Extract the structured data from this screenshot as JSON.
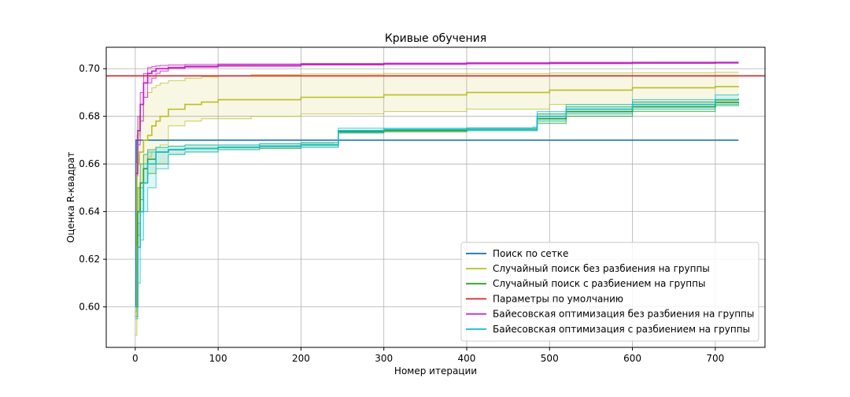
{
  "chart_data": {
    "type": "line",
    "title": "Кривые обучения",
    "xlabel": "Номер итерации",
    "ylabel": "Оценка R-квадрат",
    "xlim": [
      -35,
      760
    ],
    "ylim": [
      0.583,
      0.709
    ],
    "xticks": [
      0,
      100,
      200,
      300,
      400,
      500,
      600,
      700
    ],
    "yticks": [
      0.6,
      0.62,
      0.64,
      0.66,
      0.68,
      0.7
    ],
    "xtick_labels": [
      "0",
      "100",
      "200",
      "300",
      "400",
      "500",
      "600",
      "700"
    ],
    "ytick_labels": [
      "0.60",
      "0.62",
      "0.64",
      "0.66",
      "0.68",
      "0.70"
    ],
    "grid": true,
    "legend_position": "lower right",
    "series": [
      {
        "name": "Поиск по сетке",
        "color": "#1f77b4",
        "x": [
          0,
          1,
          728
        ],
        "y": [
          0.6,
          0.67,
          0.67
        ]
      },
      {
        "name": "Случайный поиск без разбиения на группы",
        "color": "#bcbd22",
        "x": [
          0,
          2,
          5,
          10,
          15,
          20,
          25,
          30,
          40,
          60,
          80,
          100,
          140,
          200,
          300,
          400,
          500,
          600,
          700,
          728
        ],
        "y": [
          0.598,
          0.66,
          0.665,
          0.67,
          0.672,
          0.676,
          0.678,
          0.68,
          0.683,
          0.685,
          0.686,
          0.687,
          0.687,
          0.688,
          0.689,
          0.69,
          0.691,
          0.692,
          0.6925,
          0.6927
        ],
        "band_low": [
          0.588,
          0.64,
          0.65,
          0.66,
          0.663,
          0.665,
          0.667,
          0.668,
          0.676,
          0.678,
          0.679,
          0.679,
          0.68,
          0.681,
          0.682,
          0.683,
          0.685,
          0.686,
          0.6865,
          0.6868
        ],
        "band_high": [
          0.62,
          0.672,
          0.68,
          0.688,
          0.69,
          0.692,
          0.693,
          0.694,
          0.695,
          0.696,
          0.6965,
          0.697,
          0.6975,
          0.6978,
          0.698,
          0.698,
          0.6982,
          0.6983,
          0.6985,
          0.6986
        ]
      },
      {
        "name": "Случайный поиск с разбиением на группы",
        "color": "#2ca02c",
        "x": [
          0,
          3,
          6,
          10,
          15,
          25,
          40,
          60,
          100,
          150,
          200,
          240,
          245,
          300,
          400,
          480,
          485,
          520,
          600,
          700,
          728
        ],
        "y": [
          0.6,
          0.64,
          0.652,
          0.658,
          0.662,
          0.665,
          0.666,
          0.6665,
          0.667,
          0.6675,
          0.668,
          0.668,
          0.6735,
          0.674,
          0.6745,
          0.6745,
          0.679,
          0.682,
          0.684,
          0.6858,
          0.686
        ],
        "band_low": [
          0.596,
          0.63,
          0.645,
          0.652,
          0.656,
          0.66,
          0.664,
          0.665,
          0.666,
          0.6665,
          0.667,
          0.667,
          0.673,
          0.6735,
          0.674,
          0.674,
          0.677,
          0.68,
          0.682,
          0.6845,
          0.685
        ],
        "band_high": [
          0.605,
          0.65,
          0.66,
          0.664,
          0.666,
          0.667,
          0.6675,
          0.668,
          0.668,
          0.6685,
          0.6688,
          0.669,
          0.674,
          0.6745,
          0.675,
          0.675,
          0.681,
          0.684,
          0.686,
          0.687,
          0.6872
        ]
      },
      {
        "name": "Параметры по умолчанию",
        "color": "#d62728",
        "x": [
          -35,
          760
        ],
        "y": [
          0.697,
          0.697
        ]
      },
      {
        "name": "Байесовская оптимизация без разбиения на группы",
        "color": "#c020c0",
        "x": [
          0,
          3,
          6,
          10,
          15,
          20,
          25,
          30,
          40,
          60,
          100,
          200,
          300,
          400,
          500,
          600,
          700,
          728
        ],
        "y": [
          0.656,
          0.674,
          0.685,
          0.694,
          0.698,
          0.699,
          0.7,
          0.7,
          0.7005,
          0.701,
          0.7015,
          0.7018,
          0.702,
          0.7022,
          0.7023,
          0.7024,
          0.7025,
          0.7025
        ],
        "band_low": [
          0.655,
          0.668,
          0.678,
          0.688,
          0.694,
          0.696,
          0.698,
          0.699,
          0.7,
          0.7005,
          0.701,
          0.7015,
          0.7018,
          0.702,
          0.7021,
          0.7022,
          0.7023,
          0.7023
        ],
        "band_high": [
          0.66,
          0.68,
          0.69,
          0.698,
          0.7005,
          0.701,
          0.7012,
          0.7014,
          0.7016,
          0.7018,
          0.702,
          0.7022,
          0.7024,
          0.7026,
          0.7027,
          0.7028,
          0.7028,
          0.7029
        ]
      },
      {
        "name": "Байесовская оптимизация с разбиением на группы",
        "color": "#17becf",
        "x": [
          0,
          3,
          6,
          10,
          15,
          25,
          40,
          60,
          100,
          150,
          200,
          240,
          245,
          300,
          400,
          480,
          485,
          520,
          600,
          700,
          728
        ],
        "y": [
          0.6,
          0.625,
          0.64,
          0.652,
          0.66,
          0.665,
          0.666,
          0.6665,
          0.667,
          0.6675,
          0.668,
          0.668,
          0.674,
          0.6745,
          0.6745,
          0.6745,
          0.68,
          0.683,
          0.685,
          0.687,
          0.6875
        ],
        "band_low": [
          0.595,
          0.61,
          0.628,
          0.64,
          0.65,
          0.658,
          0.664,
          0.665,
          0.666,
          0.667,
          0.667,
          0.667,
          0.673,
          0.674,
          0.674,
          0.674,
          0.678,
          0.681,
          0.683,
          0.685,
          0.6855
        ],
        "band_high": [
          0.61,
          0.635,
          0.65,
          0.66,
          0.665,
          0.667,
          0.6675,
          0.668,
          0.668,
          0.6685,
          0.669,
          0.669,
          0.675,
          0.675,
          0.6752,
          0.6755,
          0.682,
          0.685,
          0.687,
          0.689,
          0.6895
        ]
      }
    ]
  }
}
